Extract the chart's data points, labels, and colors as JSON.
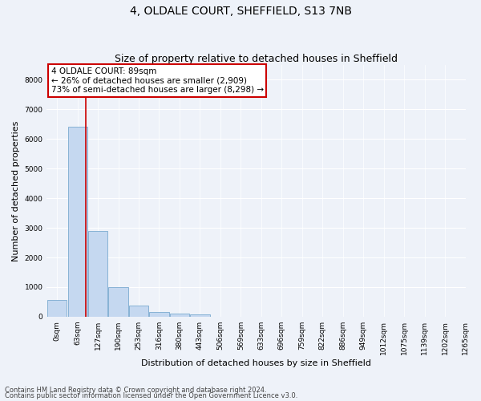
{
  "title_line1": "4, OLDALE COURT, SHEFFIELD, S13 7NB",
  "title_line2": "Size of property relative to detached houses in Sheffield",
  "xlabel": "Distribution of detached houses by size in Sheffield",
  "ylabel": "Number of detached properties",
  "bar_values": [
    580,
    6400,
    2900,
    990,
    370,
    160,
    105,
    90,
    0,
    0,
    0,
    0,
    0,
    0,
    0,
    0,
    0,
    0,
    0,
    0
  ],
  "bin_labels": [
    "0sqm",
    "63sqm",
    "127sqm",
    "190sqm",
    "253sqm",
    "316sqm",
    "380sqm",
    "443sqm",
    "506sqm",
    "569sqm",
    "633sqm",
    "696sqm",
    "759sqm",
    "822sqm",
    "886sqm",
    "949sqm",
    "1012sqm",
    "1075sqm",
    "1139sqm",
    "1202sqm",
    "1265sqm"
  ],
  "n_bins": 20,
  "bar_color": "#c5d8f0",
  "bar_edge_color": "#7aaad0",
  "annotation_text": "4 OLDALE COURT: 89sqm\n← 26% of detached houses are smaller (2,909)\n73% of semi-detached houses are larger (8,298) →",
  "annotation_box_color": "#ffffff",
  "annotation_box_edge_color": "#cc0000",
  "ylim": [
    0,
    8500
  ],
  "yticks": [
    0,
    1000,
    2000,
    3000,
    4000,
    5000,
    6000,
    7000,
    8000
  ],
  "background_color": "#eef2f9",
  "plot_bg_color": "#eef2f9",
  "grid_color": "#ffffff",
  "footer_line1": "Contains HM Land Registry data © Crown copyright and database right 2024.",
  "footer_line2": "Contains public sector information licensed under the Open Government Licence v3.0.",
  "vline_color": "#cc0000",
  "vline_x": 1.41,
  "title_fontsize": 10,
  "subtitle_fontsize": 9,
  "axis_label_fontsize": 8,
  "tick_fontsize": 6.5,
  "annotation_fontsize": 7.5,
  "footer_fontsize": 6
}
